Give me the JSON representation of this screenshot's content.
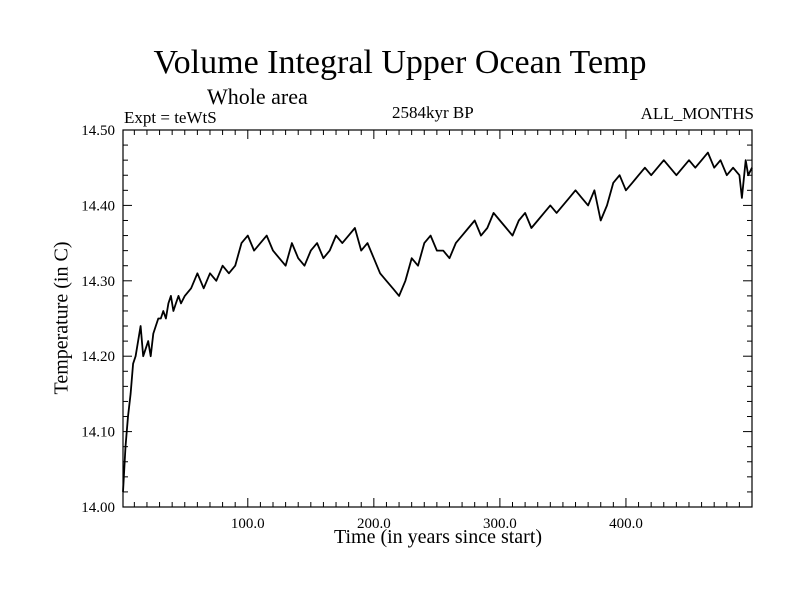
{
  "chart_data": {
    "type": "line",
    "title": "Volume Integral Upper Ocean Temp",
    "subtitle": "Whole area",
    "experiment": "Expt = teWtS",
    "period": "2584kyr BP",
    "months": "ALL_MONTHS",
    "xlabel": "Time (in years since start)",
    "ylabel": "Temperature (in C)",
    "xlim": [
      1,
      500
    ],
    "ylim": [
      14.0,
      14.5
    ],
    "xticks": [
      100,
      200,
      300,
      400
    ],
    "xtick_labels": [
      "100.0",
      "200.0",
      "300.0",
      "400.0"
    ],
    "yticks": [
      14.0,
      14.1,
      14.2,
      14.3,
      14.4,
      14.5
    ],
    "ytick_labels": [
      "14.00",
      "14.10",
      "14.20",
      "14.30",
      "14.40",
      "14.50"
    ],
    "grid": false,
    "series": [
      {
        "name": "Temperature",
        "x": [
          1,
          3,
          5,
          7,
          9,
          11,
          13,
          15,
          17,
          19,
          21,
          23,
          25,
          27,
          29,
          31,
          33,
          35,
          37,
          39,
          41,
          43,
          45,
          47,
          50,
          55,
          60,
          65,
          70,
          75,
          80,
          85,
          90,
          95,
          100,
          105,
          110,
          115,
          120,
          125,
          130,
          135,
          140,
          145,
          150,
          155,
          160,
          165,
          170,
          175,
          180,
          185,
          190,
          195,
          200,
          205,
          210,
          215,
          220,
          225,
          230,
          235,
          240,
          245,
          250,
          255,
          260,
          265,
          270,
          275,
          280,
          285,
          290,
          295,
          300,
          305,
          310,
          315,
          320,
          325,
          330,
          335,
          340,
          345,
          350,
          355,
          360,
          365,
          370,
          375,
          380,
          385,
          390,
          395,
          400,
          405,
          410,
          415,
          420,
          425,
          430,
          435,
          440,
          445,
          450,
          455,
          460,
          465,
          470,
          475,
          480,
          485,
          490,
          492,
          495,
          497,
          500
        ],
        "values": [
          14.02,
          14.08,
          14.12,
          14.15,
          14.19,
          14.2,
          14.22,
          14.24,
          14.2,
          14.21,
          14.22,
          14.2,
          14.23,
          14.24,
          14.25,
          14.25,
          14.26,
          14.25,
          14.27,
          14.28,
          14.26,
          14.27,
          14.28,
          14.27,
          14.28,
          14.29,
          14.31,
          14.29,
          14.31,
          14.3,
          14.32,
          14.31,
          14.32,
          14.35,
          14.36,
          14.34,
          14.35,
          14.36,
          14.34,
          14.33,
          14.32,
          14.35,
          14.33,
          14.32,
          14.34,
          14.35,
          14.33,
          14.34,
          14.36,
          14.35,
          14.36,
          14.37,
          14.34,
          14.35,
          14.33,
          14.31,
          14.3,
          14.29,
          14.28,
          14.3,
          14.33,
          14.32,
          14.35,
          14.36,
          14.34,
          14.34,
          14.33,
          14.35,
          14.36,
          14.37,
          14.38,
          14.36,
          14.37,
          14.39,
          14.38,
          14.37,
          14.36,
          14.38,
          14.39,
          14.37,
          14.38,
          14.39,
          14.4,
          14.39,
          14.4,
          14.41,
          14.42,
          14.41,
          14.4,
          14.42,
          14.38,
          14.4,
          14.43,
          14.44,
          14.42,
          14.43,
          14.44,
          14.45,
          14.44,
          14.45,
          14.46,
          14.45,
          14.44,
          14.45,
          14.46,
          14.45,
          14.46,
          14.47,
          14.45,
          14.46,
          14.44,
          14.45,
          14.44,
          14.41,
          14.46,
          14.44,
          14.45
        ]
      }
    ]
  }
}
